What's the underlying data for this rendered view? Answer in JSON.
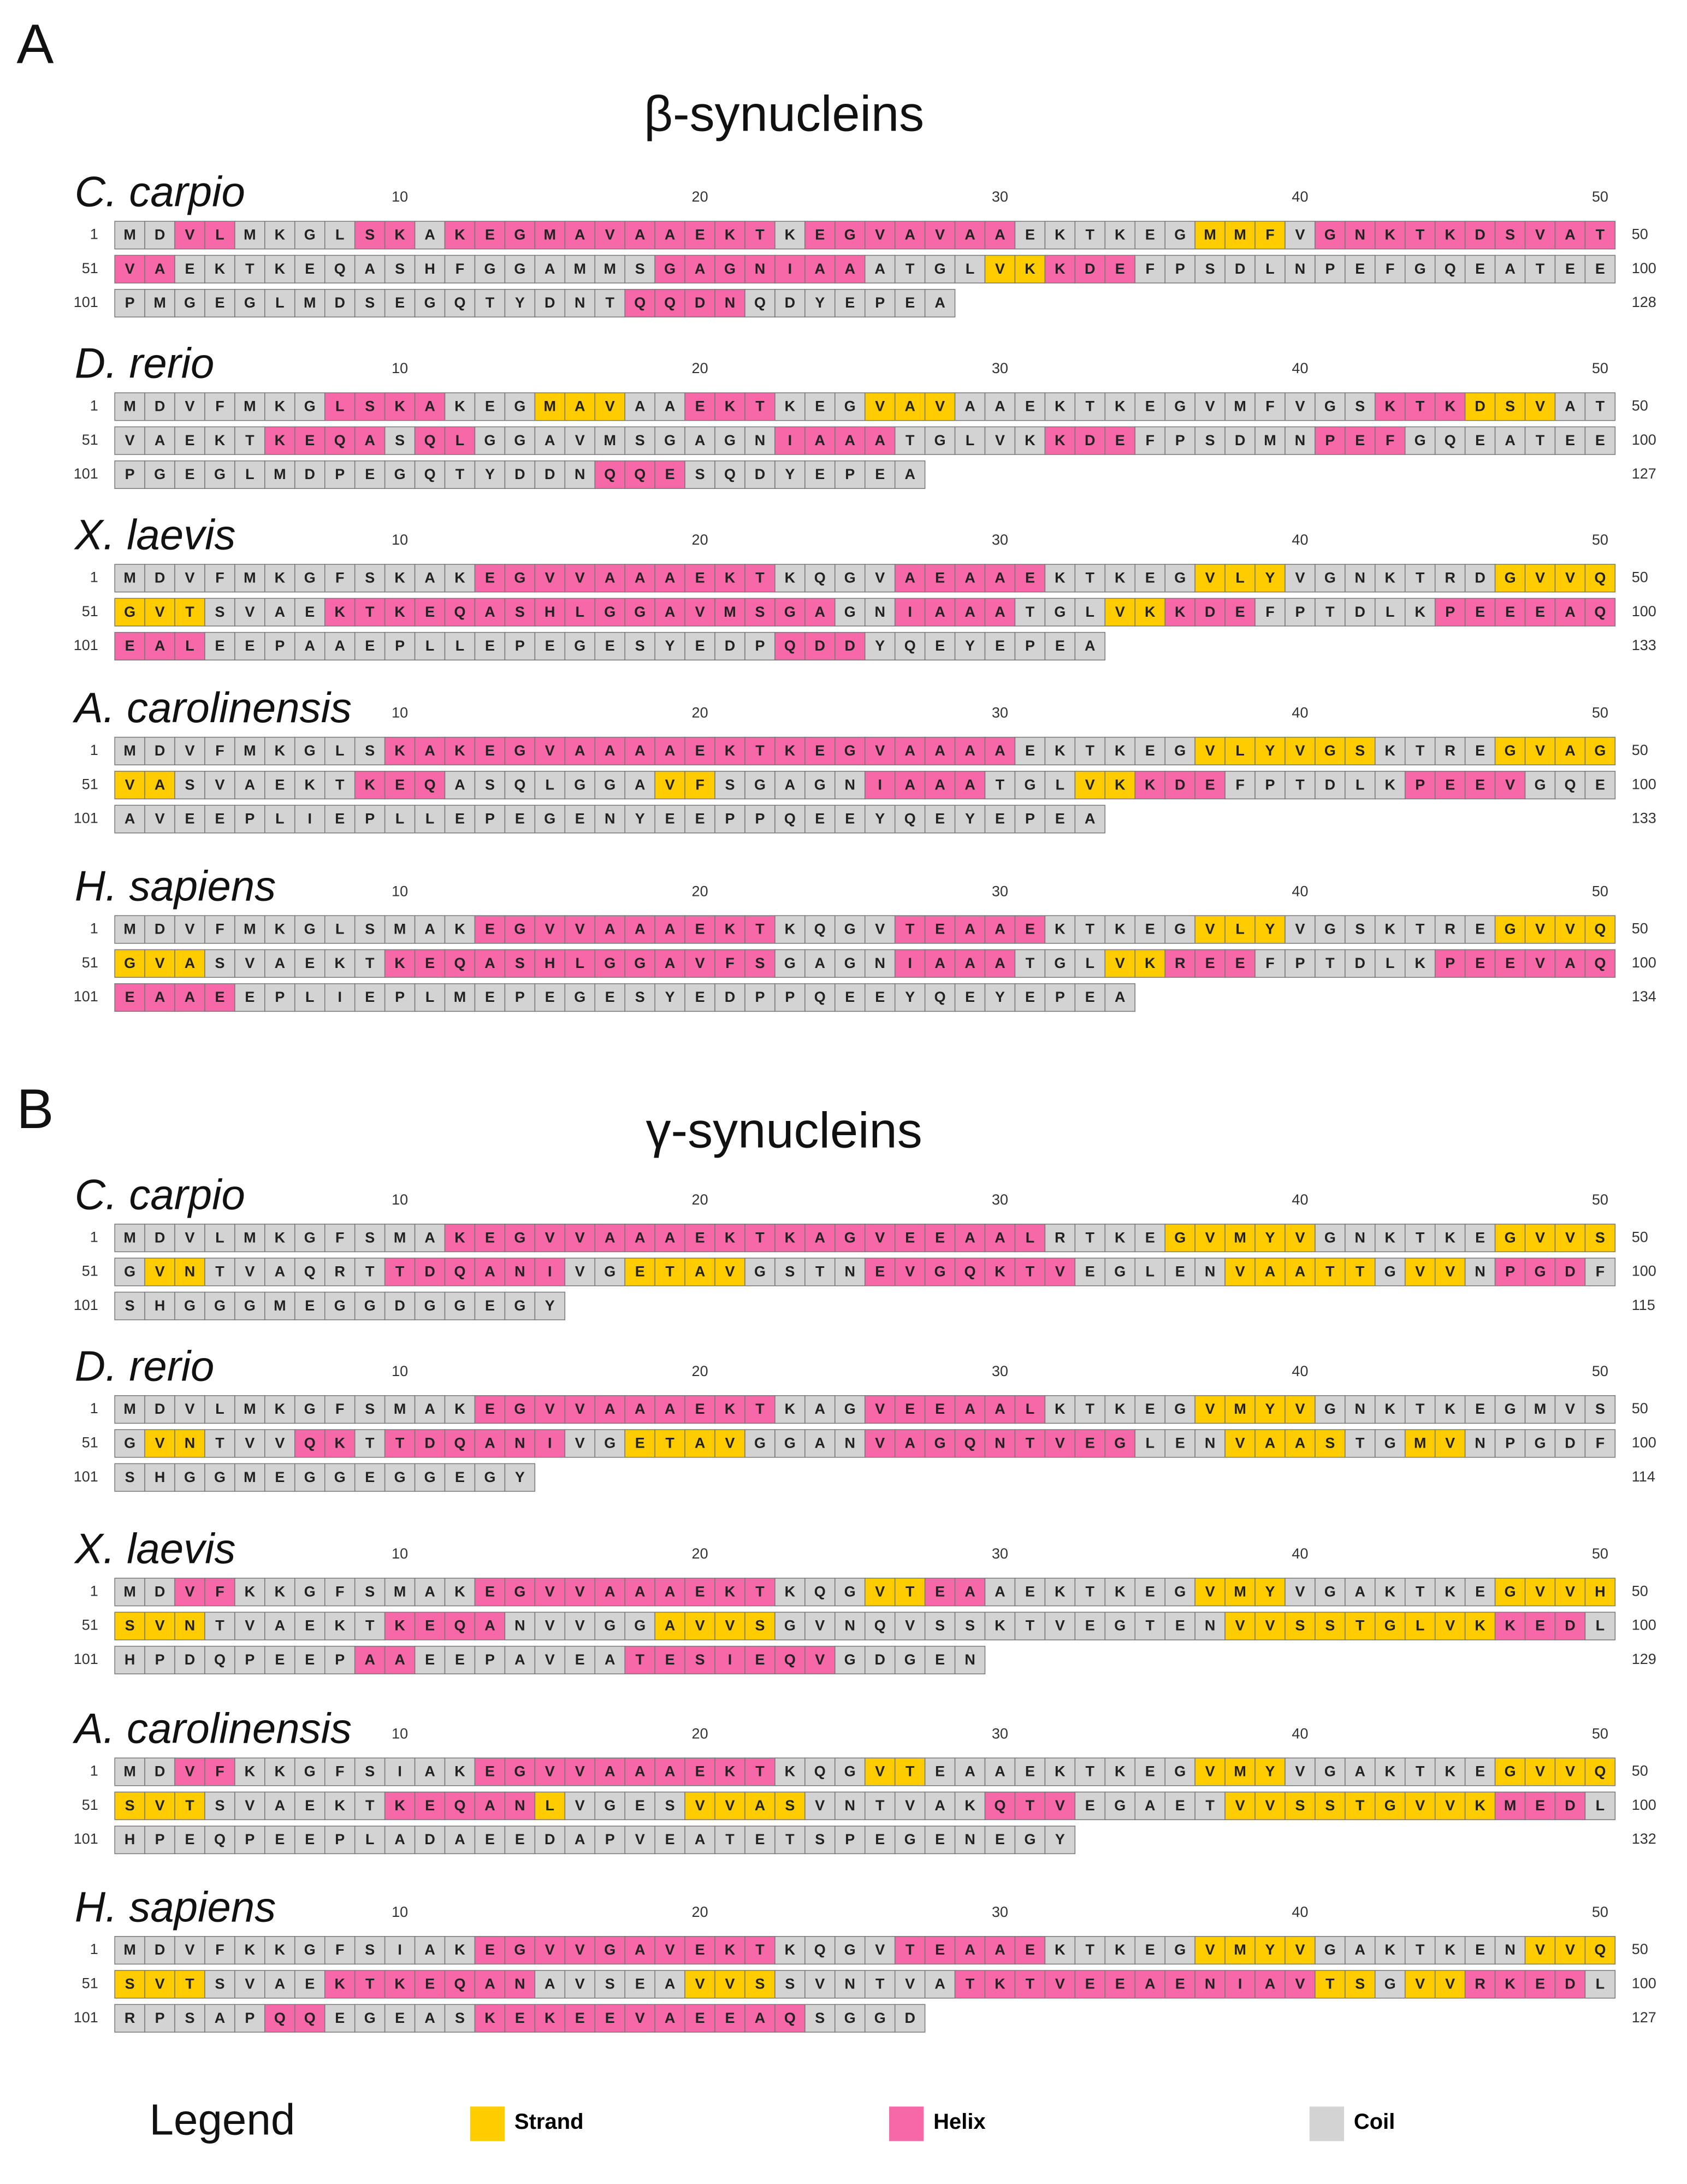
{
  "panels": [
    {
      "letter": "A",
      "title": "β-synucleins",
      "species": [
        {
          "name": "C. carpio",
          "rows": [
            {
              "start": 1,
              "seq": "MDVLMKGLSKAKEGMAVAAEKTKEGVAVAAEKTKEGMMFVGNKTKDSVAT",
              "structure": "CCHHCCCCHHCHHHHHHHHHHHCHHHHHHHCCCCCCSSSCHHHHHHHHHH",
              "end": 50
            },
            {
              "start": 51,
              "seq": "VAEKTKEQASHFGGAMMSGAGNIAAATGLVKKDEFPSDLNPEFGQEATEE",
              "structure": "HHCCCCCCCCCCCCCCCCHHHHHHHCCCCSSHHHCCCCCCCCCCCCCCCC",
              "end": 100
            },
            {
              "start": 101,
              "seq": "PMGEGLMDSEGQTYDNTQQDNQDYEPEA",
              "structure": "CCCCCCCCCCCCCCCCCHHHHCCCCCCC",
              "end": 128
            }
          ]
        },
        {
          "name": "D. rerio",
          "rows": [
            {
              "start": 1,
              "seq": "MDVFMKGLSKAKEGMAVAAEKTKEGVAVAAEKTKEGVMFVGSKTKDSVAT",
              "structure": "CCCCCCCHHHHCCCSSSCCHHHCCCSSSCCCCCCCCCCCCCCHHHSSSCC",
              "end": 50
            },
            {
              "start": 51,
              "seq": "VAEKTKEQASQLGGAVMSGAGNIAAATGLVKKDEFPSDMNPEFGQEATEE",
              "structure": "CCCCCHHHHCHHCCCCCCCCCCHHHHCCCCCHHHCCCCCCHHHCCCCCCC",
              "end": 100
            },
            {
              "start": 101,
              "seq": "PGEGLMDPEGQTYDDNQQESQDYEPEA",
              "structure": "CCCCCCCCCCCCCCCCHHHCCCCCCCC",
              "end": 127
            }
          ]
        },
        {
          "name": "X. laevis",
          "rows": [
            {
              "start": 1,
              "seq": "MDVFMKGFSKAKEGVVAAAEKTKQGVAEAAEKTKEGVLYVGNKTRDGVVQ",
              "structure": "CCCCCCCCCCCCHHHHHHHHHHCCCCHHHHHCCCCCSSSCCCCCCCSSSS",
              "end": 50
            },
            {
              "start": 51,
              "seq": "GVTSVAEKTKEQASHLGGAVMSGAGNIAAATGLVKKDEFPTDLKPEEEAQ",
              "structure": "SSSCCCCHHHHHHHHHHHHHHHHHCCHHHHCCCSSHHHCCCCCCHHHHHH",
              "end": 100
            },
            {
              "start": 101,
              "seq": "EALEEPAAEPLLEPEGESYEDPQDDYQEYEPEA",
              "structure": "HHHCCCCCCCCCCCCCCCCCCCHHHCCCCCCCC",
              "end": 133
            }
          ]
        },
        {
          "name": "A. carolinensis",
          "rows": [
            {
              "start": 1,
              "seq": "MDVFMKGLSKAKEGVAAAAEKTKEGVAAAAEKTKEGVLYVGSKTREGVAG",
              "structure": "CCCCCCCCCHHHHHHHHHHHHHHHHHHHHHCCCCCCSSSSSSCCCCSSSS",
              "end": 50
            },
            {
              "start": 51,
              "seq": "VASVAEKTKEQASQLGGAVFSGAGNIAAATGLVKKDEFPTDLKPEEVGQE",
              "structure": "SSCCCCCCHHHCCCCCCCSSCCCCCHHHHCCCSSHHHCCCCCCHHHHCCC",
              "end": 100
            },
            {
              "start": 101,
              "seq": "AVEEPLIEPLLEPEGENYEEPPQEEYQEYEPEA",
              "structure": "CCCCCCCCCCCCCCCCCCCCCCCCCCCCCCCCC",
              "end": 133
            }
          ]
        },
        {
          "name": "H. sapiens",
          "rows": [
            {
              "start": 1,
              "seq": "MDVFMKGLSMAKEGVVAAAEKTKQGVTEAAEKTKEGVLYVGSKTREGVVQ",
              "structure": "CCCCCCCCCCCCHHHHHHHHHHCCCCHHHHHCCCCCSSSCCCCCCCSSSS",
              "end": 50
            },
            {
              "start": 51,
              "seq": "GVASVAEKTKEQASHLGGAVFSGAGNIAAATGLVKREEFPTDLKPEEVAQ",
              "structure": "SSSCCCCCCHHHHHHHHHHHHHCCCCHHHHCCCSSHHHCCCCCCHHHHHH",
              "end": 100
            },
            {
              "start": 101,
              "seq": "EAAEEPLIEPLMEPEGESYEDPPQEEYQEYEPEA",
              "structure": "HHHHCCCCCCCCCCCCCCCCCCCCCCCCCCCCCC",
              "end": 134
            }
          ]
        }
      ]
    },
    {
      "letter": "B",
      "title": "γ-synucleins",
      "species": [
        {
          "name": "C. carpio",
          "rows": [
            {
              "start": 1,
              "seq": "MDVLMKGFSMAKEGVVAAAEKTKAGVEEAALRTKEGVMYVGNKTKEGVVS",
              "structure": "CCCCCCCCCCCHHHHHHHHHHHHHHHHHHHHCCCCSSSSSCCCCCCSSSS",
              "end": 50
            },
            {
              "start": 51,
              "seq": "GVNTVAQRTTDQANIVGETAVGSTNEVGQKTVEGLENVAATTGVVNPGDF",
              "structure": "CSSCCCCCCHHHHHHCCSSSSCCCCHHHHHHHCCCCCSSSSSCSSCHHHC",
              "end": 100
            },
            {
              "start": 101,
              "seq": "SHGGGMEGGDGGEGY",
              "structure": "CCCCCCCCCCCCCCC",
              "end": 115
            }
          ]
        },
        {
          "name": "D. rerio",
          "rows": [
            {
              "start": 1,
              "seq": "MDVLMKGFSMAKEGVVAAAEKTKAGVEEAALKTKEGVMYVGNKTKEGMVS",
              "structure": "CCCCCCCCCCCCHHHHHHHHHHCCCHHHHHHCCCCCSSSSCCCCCCCCCC",
              "end": 50
            },
            {
              "start": 51,
              "seq": "GVNTVVQKTTDQANIVGETAVGGANVAGQNTVEGLENVAASTGMVNPGDF",
              "structure": "CSSCCCHHCHHHHHHCCSSSSCCCCHHHHHHHHHCCCSSSSCCSSCCCCC",
              "end": 100
            },
            {
              "start": 101,
              "seq": "SHGGMEGGEGGEGY",
              "structure": "CCCCCCCCCCCCCC",
              "end": 114
            }
          ]
        },
        {
          "name": "X. laevis",
          "rows": [
            {
              "start": 1,
              "seq": "MDVFKKGFSMAKEGVVAAAEKTKQGVTEAAEKTKEGVMYVGAKTKEGVVH",
              "structure": "CCHHCCCCCCCCHHHHHHHHHHCCCSSHHCCCCCCCSSSCCCCCCCSSSS",
              "end": 50
            },
            {
              "start": 51,
              "seq": "SVNTVAEKTKEQANVVGGAVVSGVNQVSSKTVEGTENVVSSTGLVKKEDL",
              "structure": "SSSCCCCCCHHHHCCCCCSSSSCCCCCCCCCCCCCCCSSSSSSSSSHHHC",
              "end": 100
            },
            {
              "start": 101,
              "seq": "HPDQPEEPAAEEPAVEATESIEQVGDGEN",
              "structure": "CCCCCCCCHHCCCCCCCHHHHHHHCCCCC",
              "end": 129
            }
          ]
        },
        {
          "name": "A. carolinensis",
          "rows": [
            {
              "start": 1,
              "seq": "MDVFKKGFSIAKEGVVAAAEKTKQGVTEAAEKTKEGVMYVGAKTKEGVVQ",
              "structure": "CCHHCCCCCCCCHHHHHHHHHHCCCSSCCCCCCCCCSSSCCCCCCCSSSS",
              "end": 50
            },
            {
              "start": 51,
              "seq": "SVTSVAEKTKEQANLVGESVVASVNTVAKQTVEGAETVVSSTGVVKMEDL",
              "structure": "SSSCCCCCCHHHHHSCCCCSSSSCCCCCCHHHCCCCCSSSSSSSSSHHHC",
              "end": 100
            },
            {
              "start": 101,
              "seq": "HPEQPEEPLADAEEDAPVEATETSPEGENEGY",
              "structure": "CCCCCCCCCCCCCCCCCCCCCCCCCCCCCCCC",
              "end": 132
            }
          ]
        },
        {
          "name": "H. sapiens",
          "rows": [
            {
              "start": 1,
              "seq": "MDVFKKGFSIAKEGVVGAVEKTKQGVTEAAEKTKEGVMYVGAKTKENVVQ",
              "structure": "CCCCCCCCCCCCHHHHHHHHHHCCCCHHHHHCCCCCSSSSCCCCCCCSSS",
              "end": 50
            },
            {
              "start": 51,
              "seq": "SVTSVAEKTKEQANAVSEAVVSSVNTVATKTVEEAENIAVTSGVVRKEDL",
              "structure": "SSSCCCCHHHHHHHCCCCCSSSCCCCCCHHHHHHHHHHHHSSCSSHHHHC",
              "end": 100
            },
            {
              "start": 101,
              "seq": "RPSAPQQEGEASKEKEEVAEEAQSGGD",
              "structure": "CCCCCHHCCCCCHHHHHHHHHHHCCCC",
              "end": 127
            }
          ]
        }
      ]
    }
  ],
  "ruler": [
    10,
    20,
    30,
    40,
    50
  ],
  "legend": {
    "title": "Legend",
    "items": [
      {
        "label": "Strand",
        "color": "#ffcc00"
      },
      {
        "label": "Helix",
        "color": "#f768a8"
      },
      {
        "label": "Coil",
        "color": "#d3d3d3"
      }
    ]
  }
}
